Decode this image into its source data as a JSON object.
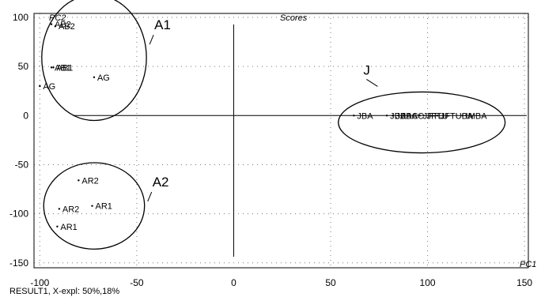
{
  "chart_data": {
    "type": "scatter",
    "title": "Scores",
    "xlabel": "PC1",
    "ylabel": "PC2",
    "xlim": [
      -103,
      152
    ],
    "ylim": [
      -155,
      104
    ],
    "xticks": [
      -100,
      -50,
      0,
      50,
      100,
      150
    ],
    "yticks": [
      100,
      50,
      0,
      -50,
      -100,
      -150
    ],
    "tick_labels_x": [
      "-100",
      "-50",
      "0",
      "50",
      "100",
      "150"
    ],
    "tick_labels_y": [
      "100",
      "50",
      "0",
      "-50",
      "-100",
      "-150"
    ],
    "grid": true,
    "points": [
      {
        "label": "AB2",
        "x": -94,
        "y": 93
      },
      {
        "label": "AB2",
        "x": -92,
        "y": 91
      },
      {
        "label": "AB1",
        "x": -94,
        "y": 49
      },
      {
        "label": "AB1",
        "x": -93,
        "y": 49
      },
      {
        "label": "AG",
        "x": -72,
        "y": 39
      },
      {
        "label": "AG",
        "x": -100,
        "y": 30
      },
      {
        "label": "AR2",
        "x": -80,
        "y": -66
      },
      {
        "label": "AR1",
        "x": -73,
        "y": -92
      },
      {
        "label": "AR2",
        "x": -90,
        "y": -95
      },
      {
        "label": "AR1",
        "x": -91,
        "y": -113
      },
      {
        "label": "JBA",
        "x": 62,
        "y": 0
      },
      {
        "label": "JBA",
        "x": 79,
        "y": 0
      },
      {
        "label": "JBAC",
        "x": 82,
        "y": 0
      },
      {
        "label": "JBAC",
        "x": 85,
        "y": 0
      },
      {
        "label": "JFTU",
        "x": 96,
        "y": 0
      },
      {
        "label": "JFTU",
        "x": 98,
        "y": 0
      },
      {
        "label": "JFTUBA",
        "x": 105,
        "y": 0
      },
      {
        "label": "IMBA",
        "x": 118,
        "y": 0
      }
    ],
    "groups": [
      {
        "label": "A1",
        "center": [
          -72,
          59
        ],
        "radius_x": 27,
        "radius_y": 64
      },
      {
        "label": "A2",
        "center": [
          -72,
          -92
        ],
        "radius_x": 26,
        "radius_y": 44
      },
      {
        "label": "J",
        "center": [
          97,
          -7
        ],
        "radius_x": 43,
        "radius_y": 31
      }
    ],
    "footer": "RESULT1, X-expl: 50%,18%"
  }
}
